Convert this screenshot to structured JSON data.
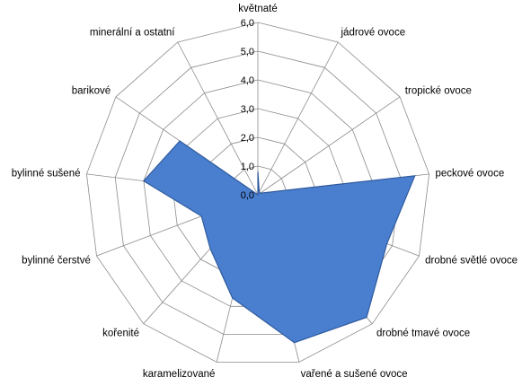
{
  "chart_data": {
    "type": "radar",
    "categories": [
      "květnaté",
      "jádrové ovoce",
      "tropické ovoce",
      "peckové ovoce",
      "drobné světlé ovoce",
      "drobné tmavé ovoce",
      "vařené a sušené ovoce",
      "karamelizované",
      "kořenité",
      "bylinné čerstvé",
      "bylinné sušené",
      "barikové",
      "minerální a ostatní"
    ],
    "series": [
      {
        "values": [
          0.8,
          0.1,
          0.1,
          5.5,
          4.8,
          5.7,
          5.3,
          3.7,
          2.5,
          2.1,
          4.0,
          3.3,
          0.0
        ]
      }
    ],
    "ylim": [
      0,
      6
    ],
    "ticks": [
      "0,0",
      "1,0",
      "2,0",
      "3,0",
      "4,0",
      "5,0",
      "6,0"
    ],
    "grid": true,
    "legend": "none",
    "colors": {
      "fill": "#4a7fd0",
      "stroke": "#2f5a9c",
      "grid": "#8c8c8c"
    }
  }
}
